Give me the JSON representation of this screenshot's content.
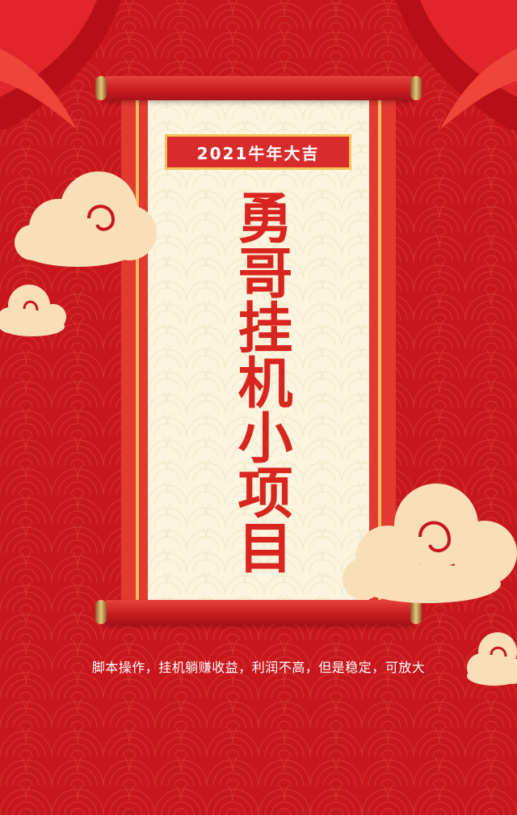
{
  "poster": {
    "badge": "2021牛年大吉",
    "title": "勇哥挂机小项目",
    "subtitle": "脚本操作，挂机躺赚收益，利润不高，但是稳定，可放大"
  },
  "colors": {
    "background": "#c8161d",
    "scroll_border": "#e33932",
    "paper": "#fbf4de",
    "gold": "#f2c15f",
    "title_red": "#d8251f",
    "cloud": "#f8dfb8"
  },
  "icons": [
    "curtain-left-icon",
    "curtain-right-icon",
    "cloud-icon"
  ]
}
